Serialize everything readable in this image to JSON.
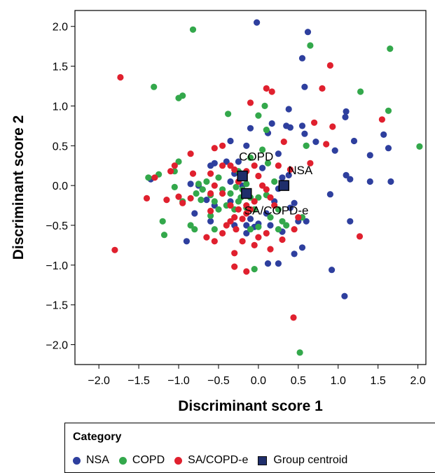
{
  "chart_data": {
    "type": "scatter",
    "xlabel": "Discriminant score 1",
    "ylabel": "Discriminant score 2",
    "xlim": [
      -2.3,
      2.1
    ],
    "ylim": [
      -2.25,
      2.2
    ],
    "x_ticks": [
      -2.0,
      -1.5,
      -1.0,
      -0.5,
      0.0,
      0.5,
      1.0,
      1.5,
      2.0
    ],
    "x_tick_labels": [
      "−2.0",
      "−1.5",
      "−1.0",
      "−0.5",
      "0.0",
      "0.5",
      "1.0",
      "1.5",
      "2.0"
    ],
    "y_ticks": [
      2.0,
      1.5,
      1.0,
      0.5,
      0.0,
      -0.5,
      -1.0,
      -1.5,
      -2.0
    ],
    "y_tick_labels": [
      "2.0",
      "1.5",
      "1.0",
      "0.5",
      "0.0",
      "−0.5",
      "−1.0",
      "−1.5",
      "−2.0"
    ],
    "grid": false,
    "legend_position": "bottom",
    "series": [
      {
        "name": "NSA",
        "color": "#2e3f9e",
        "points": [
          [
            -0.02,
            2.05
          ],
          [
            0.62,
            1.93
          ],
          [
            0.55,
            1.6
          ],
          [
            0.58,
            1.24
          ],
          [
            1.1,
            0.93
          ],
          [
            1.09,
            0.86
          ],
          [
            0.38,
            0.96
          ],
          [
            0.35,
            0.75
          ],
          [
            0.4,
            0.73
          ],
          [
            0.55,
            0.75
          ],
          [
            -0.1,
            0.72
          ],
          [
            0.12,
            0.66
          ],
          [
            0.17,
            0.78
          ],
          [
            0.58,
            0.65
          ],
          [
            0.72,
            0.55
          ],
          [
            0.96,
            0.44
          ],
          [
            1.2,
            0.56
          ],
          [
            1.4,
            0.38
          ],
          [
            1.57,
            0.64
          ],
          [
            1.63,
            0.47
          ],
          [
            1.66,
            0.05
          ],
          [
            1.4,
            0.05
          ],
          [
            1.15,
            0.08
          ],
          [
            1.1,
            0.13
          ],
          [
            0.9,
            -0.11
          ],
          [
            0.38,
            0.13
          ],
          [
            0.3,
            0.1
          ],
          [
            0.25,
            -0.04
          ],
          [
            0.45,
            -0.22
          ],
          [
            0.4,
            -0.28
          ],
          [
            0.5,
            -0.45
          ],
          [
            0.3,
            -0.58
          ],
          [
            0.55,
            -0.78
          ],
          [
            0.45,
            -0.86
          ],
          [
            0.12,
            -0.98
          ],
          [
            0.25,
            -0.98
          ],
          [
            0.92,
            -1.06
          ],
          [
            1.08,
            -1.39
          ],
          [
            1.15,
            -0.45
          ],
          [
            0.6,
            -0.45
          ],
          [
            0.2,
            -0.2
          ],
          [
            0.1,
            -0.35
          ],
          [
            0.15,
            -0.5
          ],
          [
            0.0,
            -0.48
          ],
          [
            -0.05,
            -0.52
          ],
          [
            -0.15,
            -0.5
          ],
          [
            -0.1,
            -0.42
          ],
          [
            -0.3,
            -0.5
          ],
          [
            -0.35,
            -0.2
          ],
          [
            -0.55,
            -0.25
          ],
          [
            -0.65,
            -0.18
          ],
          [
            -0.7,
            -0.05
          ],
          [
            -0.75,
            0.0
          ],
          [
            -0.6,
            0.25
          ],
          [
            -0.4,
            0.3
          ],
          [
            -0.3,
            0.15
          ],
          [
            -0.35,
            0.05
          ],
          [
            -0.2,
            0.0
          ],
          [
            -0.25,
            0.3
          ],
          [
            -0.15,
            0.5
          ],
          [
            -0.35,
            0.56
          ],
          [
            -0.55,
            0.28
          ],
          [
            -0.85,
            0.02
          ],
          [
            -0.9,
            -0.7
          ],
          [
            -0.6,
            -0.45
          ],
          [
            -0.8,
            -0.35
          ],
          [
            -1.35,
            0.08
          ],
          [
            -0.15,
            -0.6
          ],
          [
            0.05,
            0.22
          ],
          [
            0.25,
            0.4
          ]
        ]
      },
      {
        "name": "COPD",
        "color": "#33a84b",
        "points": [
          [
            -0.82,
            1.96
          ],
          [
            0.65,
            1.76
          ],
          [
            1.65,
            1.72
          ],
          [
            1.28,
            1.18
          ],
          [
            1.63,
            0.94
          ],
          [
            2.02,
            0.49
          ],
          [
            -1.31,
            1.24
          ],
          [
            -0.95,
            1.13
          ],
          [
            -1.0,
            1.1
          ],
          [
            0.08,
            1.0
          ],
          [
            0.0,
            0.88
          ],
          [
            0.1,
            0.7
          ],
          [
            -0.38,
            0.9
          ],
          [
            0.6,
            0.5
          ],
          [
            -1.0,
            0.3
          ],
          [
            -1.05,
            0.18
          ],
          [
            -1.25,
            0.14
          ],
          [
            -1.38,
            0.1
          ],
          [
            -1.05,
            -0.02
          ],
          [
            -0.95,
            -0.2
          ],
          [
            -1.2,
            -0.45
          ],
          [
            -1.18,
            -0.62
          ],
          [
            -0.85,
            -0.5
          ],
          [
            -0.8,
            -0.55
          ],
          [
            -0.55,
            -0.55
          ],
          [
            -0.6,
            -0.38
          ],
          [
            -0.7,
            -0.05
          ],
          [
            -0.75,
            0.02
          ],
          [
            -0.78,
            -0.1
          ],
          [
            -0.72,
            -0.18
          ],
          [
            -0.6,
            -0.12
          ],
          [
            -0.5,
            0.1
          ],
          [
            -0.45,
            -0.05
          ],
          [
            -0.35,
            -0.1
          ],
          [
            -0.4,
            -0.25
          ],
          [
            -0.3,
            -0.3
          ],
          [
            -0.25,
            -0.2
          ],
          [
            -0.2,
            -0.05
          ],
          [
            -0.15,
            0.02
          ],
          [
            -0.1,
            -0.15
          ],
          [
            -0.05,
            -0.3
          ],
          [
            0.0,
            -0.15
          ],
          [
            0.1,
            -0.12
          ],
          [
            0.12,
            0.28
          ],
          [
            -0.1,
            0.35
          ],
          [
            0.05,
            0.45
          ],
          [
            0.25,
            -0.3
          ],
          [
            0.3,
            -0.45
          ],
          [
            0.35,
            -0.5
          ],
          [
            0.25,
            -0.55
          ],
          [
            0.55,
            -0.4
          ],
          [
            0.15,
            -0.4
          ],
          [
            -0.1,
            -0.55
          ],
          [
            0.0,
            -0.52
          ],
          [
            0.6,
            0.5
          ],
          [
            -0.15,
            -0.28
          ],
          [
            -0.22,
            -0.15
          ],
          [
            -0.28,
            -0.02
          ],
          [
            -0.55,
            -0.2
          ],
          [
            -0.5,
            -0.3
          ],
          [
            -0.05,
            -1.05
          ],
          [
            0.52,
            -2.1
          ],
          [
            -0.25,
            0.18
          ],
          [
            0.2,
            0.05
          ],
          [
            -0.65,
            0.05
          ]
        ]
      },
      {
        "name": "SA/COPD-e",
        "color": "#e0202e",
        "points": [
          [
            -1.73,
            1.36
          ],
          [
            -1.8,
            -0.81
          ],
          [
            0.9,
            1.51
          ],
          [
            0.8,
            1.22
          ],
          [
            0.1,
            1.22
          ],
          [
            0.17,
            1.18
          ],
          [
            -0.1,
            1.04
          ],
          [
            0.7,
            0.79
          ],
          [
            0.93,
            0.74
          ],
          [
            1.55,
            0.83
          ],
          [
            0.85,
            0.52
          ],
          [
            0.32,
            0.55
          ],
          [
            -0.45,
            0.5
          ],
          [
            -0.55,
            0.47
          ],
          [
            -0.85,
            0.4
          ],
          [
            -1.05,
            0.25
          ],
          [
            -1.1,
            0.18
          ],
          [
            -1.3,
            0.1
          ],
          [
            -1.4,
            -0.16
          ],
          [
            -1.15,
            -0.18
          ],
          [
            -1.0,
            -0.14
          ],
          [
            -0.95,
            -0.22
          ],
          [
            -0.85,
            -0.16
          ],
          [
            -0.82,
            0.15
          ],
          [
            -0.6,
            0.15
          ],
          [
            -0.55,
            0.0
          ],
          [
            -0.6,
            -0.1
          ],
          [
            -0.6,
            -0.32
          ],
          [
            -0.65,
            -0.65
          ],
          [
            -0.55,
            -0.7
          ],
          [
            -0.45,
            -0.6
          ],
          [
            -0.4,
            -0.5
          ],
          [
            -0.35,
            -0.45
          ],
          [
            -0.3,
            -0.4
          ],
          [
            -0.28,
            -0.55
          ],
          [
            -0.2,
            -0.42
          ],
          [
            -0.15,
            -0.35
          ],
          [
            -0.15,
            -0.25
          ],
          [
            -0.1,
            -0.3
          ],
          [
            -0.05,
            -0.2
          ],
          [
            -0.25,
            -0.3
          ],
          [
            -0.35,
            -0.25
          ],
          [
            -0.25,
            0.05
          ],
          [
            -0.3,
            0.2
          ],
          [
            -0.35,
            0.25
          ],
          [
            -0.15,
            0.18
          ],
          [
            -0.05,
            0.25
          ],
          [
            0.0,
            0.12
          ],
          [
            0.05,
            0.0
          ],
          [
            0.1,
            -0.05
          ],
          [
            0.15,
            -0.15
          ],
          [
            0.2,
            -0.25
          ],
          [
            0.1,
            -0.6
          ],
          [
            0.0,
            -0.65
          ],
          [
            -0.05,
            -0.75
          ],
          [
            -0.2,
            -0.7
          ],
          [
            -0.3,
            -0.85
          ],
          [
            -0.3,
            -1.02
          ],
          [
            -0.15,
            -1.08
          ],
          [
            0.15,
            -0.8
          ],
          [
            0.3,
            -0.68
          ],
          [
            0.45,
            -0.55
          ],
          [
            0.5,
            -0.4
          ],
          [
            0.4,
            0.2
          ],
          [
            0.65,
            0.28
          ],
          [
            0.25,
            0.25
          ],
          [
            1.27,
            -0.64
          ],
          [
            0.44,
            -1.66
          ],
          [
            -0.45,
            -0.1
          ],
          [
            -0.45,
            0.25
          ]
        ]
      }
    ],
    "centroids": {
      "name": "Group centroid",
      "color": "#1f2e6b",
      "points": [
        {
          "label": "COPD",
          "x": -0.2,
          "y": 0.12
        },
        {
          "label": "NSA",
          "x": 0.32,
          "y": 0.0
        },
        {
          "label": "SA/COPD-e",
          "x": -0.15,
          "y": -0.1
        }
      ]
    }
  },
  "legend": {
    "title": "Category",
    "items": [
      {
        "label": "NSA",
        "shape": "dot",
        "color": "#2e3f9e"
      },
      {
        "label": "COPD",
        "shape": "dot",
        "color": "#33a84b"
      },
      {
        "label": "SA/COPD-e",
        "shape": "dot",
        "color": "#e0202e"
      },
      {
        "label": "Group centroid",
        "shape": "square",
        "color": "#1f2e6b"
      }
    ]
  }
}
